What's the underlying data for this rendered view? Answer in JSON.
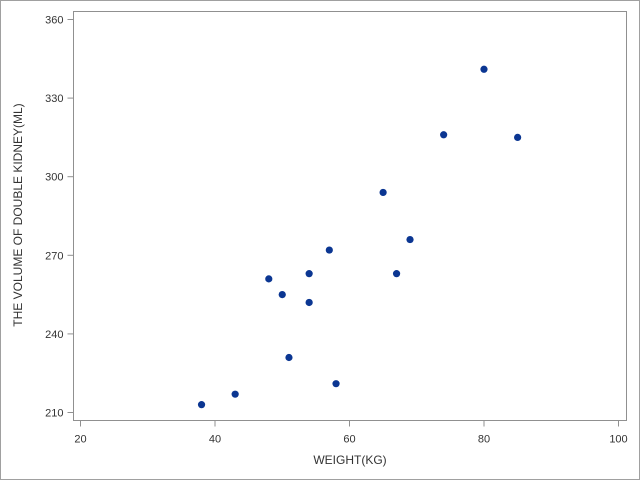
{
  "chart_data": {
    "type": "scatter",
    "x_label": "WEIGHT(KG)",
    "y_label": "THE VOLUME OF DOUBLE KIDNEY(ML)",
    "x": [
      38,
      43,
      48,
      50,
      51,
      54,
      54,
      57,
      58,
      65,
      67,
      69,
      74,
      80,
      85
    ],
    "values": [
      213,
      217,
      261,
      255,
      231,
      263,
      252,
      272,
      221,
      294,
      263,
      276,
      316,
      341,
      315
    ],
    "color": "#0b3692",
    "xlim": [
      18.96,
      101.19
    ],
    "xticks": [
      20,
      40,
      60,
      80,
      100
    ],
    "ylim": [
      206.95,
      363.05
    ],
    "yticks": [
      210,
      240,
      270,
      300,
      330,
      360
    ],
    "grid": false
  }
}
